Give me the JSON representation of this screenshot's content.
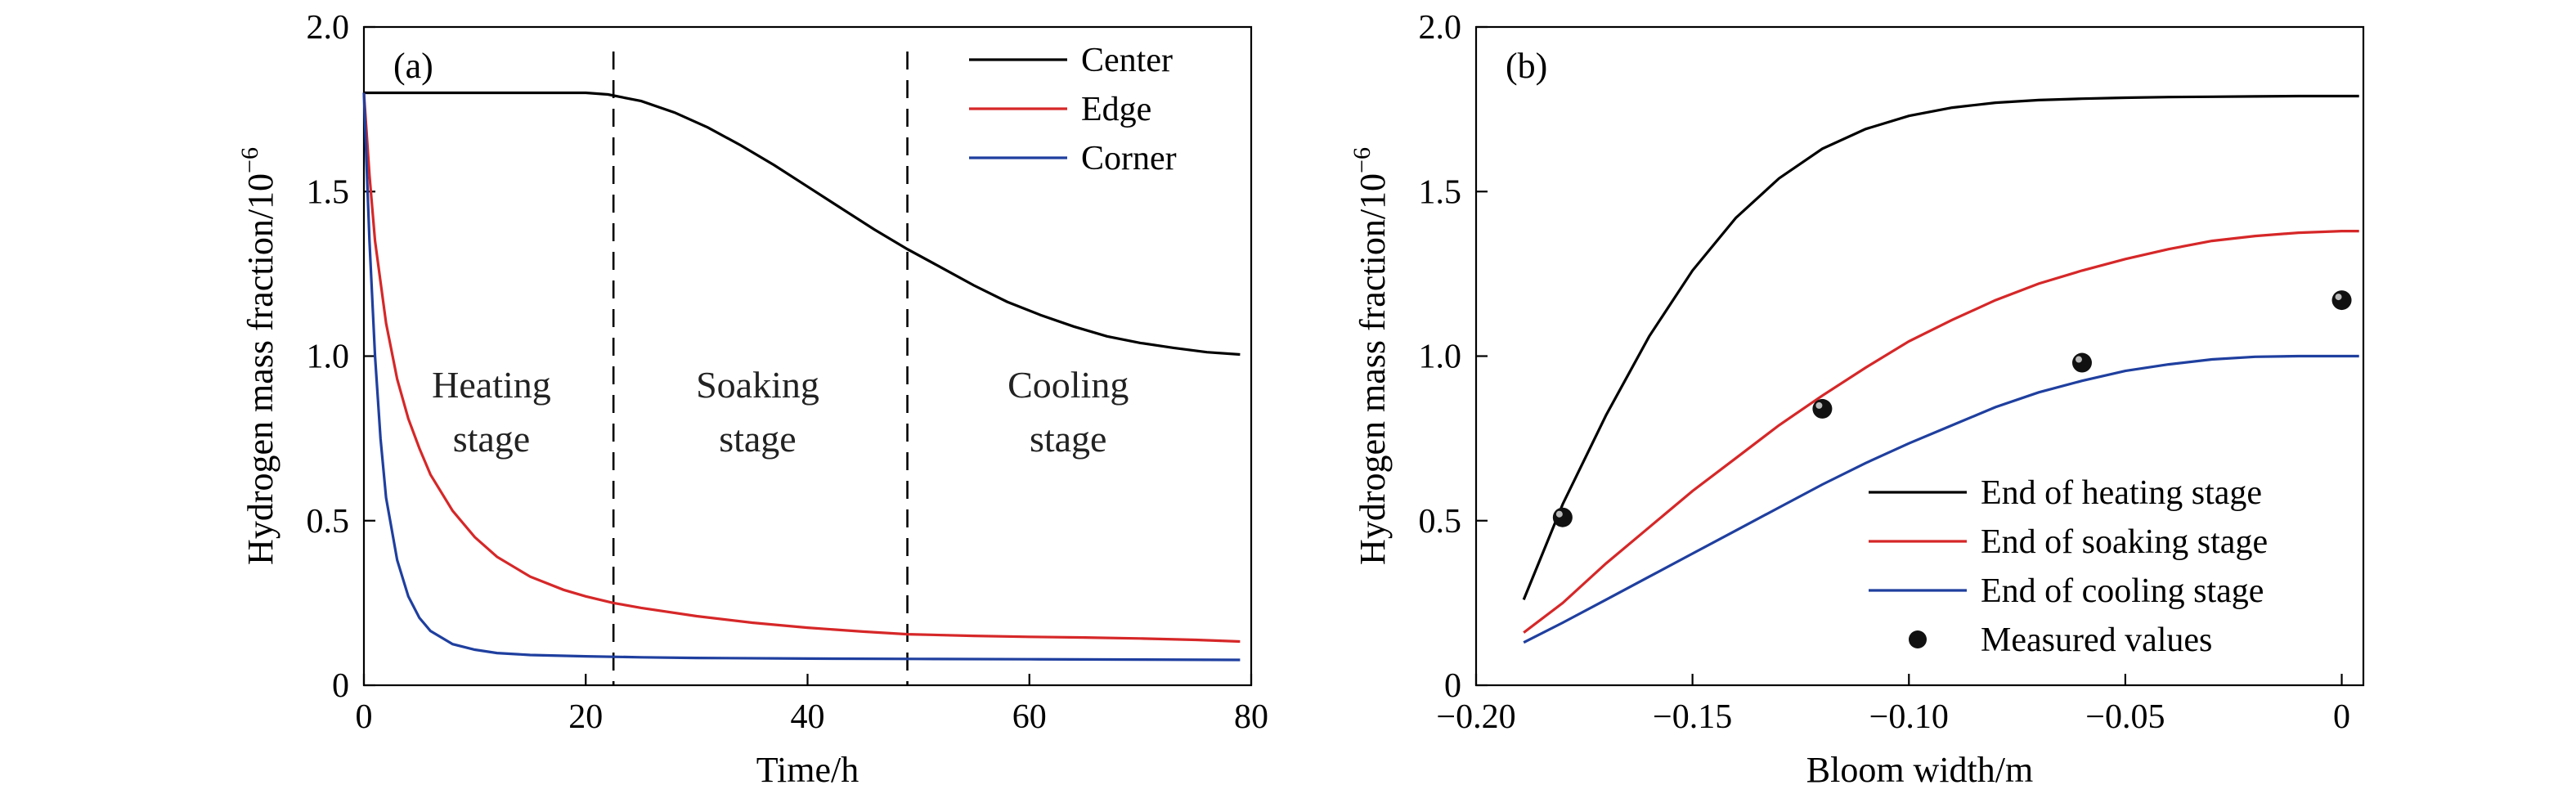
{
  "chart_data": [
    {
      "type": "line",
      "panel_label": "(a)",
      "xlabel": "Time/h",
      "ylabel": "Hydrogen mass fraction/10",
      "ylabel_exponent": "−6",
      "xlim": [
        0,
        80
      ],
      "ylim": [
        0,
        2.0
      ],
      "xticks": [
        0,
        20,
        40,
        60,
        80
      ],
      "xtick_labels": [
        "0",
        "20",
        "40",
        "60",
        "80"
      ],
      "yticks": [
        0,
        0.5,
        1.0,
        1.5,
        2.0
      ],
      "ytick_labels": [
        "0",
        "0.5",
        "1.0",
        "1.5",
        "2.0"
      ],
      "legend_position": "top-right",
      "stage_dividers_x": [
        22.5,
        49
      ],
      "stage_labels": [
        {
          "line1": "Heating",
          "line2": "stage",
          "x": 11.5,
          "y": 0.85
        },
        {
          "line1": "Soaking",
          "line2": "stage",
          "x": 35.5,
          "y": 0.85
        },
        {
          "line1": "Cooling",
          "line2": "stage",
          "x": 63.5,
          "y": 0.85
        }
      ],
      "series": [
        {
          "name": "Center",
          "color": "#000000",
          "x": [
            0,
            5,
            10,
            15,
            20,
            22,
            25,
            28,
            31,
            34,
            37,
            40,
            43,
            46,
            49,
            52,
            55,
            58,
            61,
            64,
            67,
            70,
            73,
            76,
            79
          ],
          "y": [
            1.8,
            1.8,
            1.8,
            1.8,
            1.8,
            1.795,
            1.775,
            1.74,
            1.695,
            1.64,
            1.58,
            1.515,
            1.45,
            1.385,
            1.325,
            1.27,
            1.215,
            1.165,
            1.125,
            1.09,
            1.06,
            1.04,
            1.025,
            1.012,
            1.005
          ]
        },
        {
          "name": "Edge",
          "color": "#d62728",
          "x": [
            0,
            0.5,
            1,
            2,
            3,
            4,
            5,
            6,
            8,
            10,
            12,
            15,
            18,
            20,
            22.5,
            25,
            30,
            35,
            40,
            45,
            49,
            55,
            60,
            65,
            70,
            75,
            79
          ],
          "y": [
            1.8,
            1.55,
            1.35,
            1.1,
            0.93,
            0.81,
            0.72,
            0.64,
            0.53,
            0.45,
            0.39,
            0.33,
            0.29,
            0.27,
            0.25,
            0.235,
            0.21,
            0.19,
            0.175,
            0.163,
            0.155,
            0.15,
            0.147,
            0.145,
            0.142,
            0.138,
            0.133
          ]
        },
        {
          "name": "Corner",
          "color": "#1f3f9f",
          "x": [
            0,
            0.5,
            1,
            1.5,
            2,
            3,
            4,
            5,
            6,
            8,
            10,
            12,
            15,
            20,
            25,
            30,
            40,
            50,
            60,
            70,
            79
          ],
          "y": [
            1.8,
            1.35,
            1.0,
            0.75,
            0.57,
            0.38,
            0.27,
            0.205,
            0.165,
            0.125,
            0.108,
            0.098,
            0.092,
            0.088,
            0.085,
            0.083,
            0.081,
            0.08,
            0.079,
            0.078,
            0.077
          ]
        }
      ]
    },
    {
      "type": "line",
      "panel_label": "(b)",
      "xlabel": "Bloom width/m",
      "ylabel": "Hydrogen mass fraction/10",
      "ylabel_exponent": "−6",
      "xlim": [
        -0.2,
        0.005
      ],
      "ylim": [
        0,
        2.0
      ],
      "xticks": [
        -0.2,
        -0.15,
        -0.1,
        -0.05,
        0
      ],
      "xtick_labels": [
        "−0.20",
        "−0.15",
        "−0.10",
        "−0.05",
        "0"
      ],
      "yticks": [
        0,
        0.5,
        1.0,
        1.5,
        2.0
      ],
      "ytick_labels": [
        "0",
        "0.5",
        "1.0",
        "1.5",
        "2.0"
      ],
      "legend_position": "bottom-right",
      "series": [
        {
          "name": "End of heating stage",
          "color": "#000000",
          "x": [
            -0.189,
            -0.18,
            -0.17,
            -0.16,
            -0.15,
            -0.14,
            -0.13,
            -0.12,
            -0.11,
            -0.1,
            -0.09,
            -0.08,
            -0.07,
            -0.06,
            -0.05,
            -0.04,
            -0.03,
            -0.02,
            -0.01,
            0.0,
            0.004
          ],
          "y": [
            0.26,
            0.55,
            0.82,
            1.06,
            1.26,
            1.42,
            1.54,
            1.63,
            1.69,
            1.73,
            1.755,
            1.77,
            1.778,
            1.782,
            1.785,
            1.787,
            1.788,
            1.789,
            1.79,
            1.79,
            1.79
          ]
        },
        {
          "name": "End of soaking stage",
          "color": "#d62728",
          "x": [
            -0.189,
            -0.18,
            -0.17,
            -0.16,
            -0.15,
            -0.14,
            -0.13,
            -0.12,
            -0.11,
            -0.1,
            -0.09,
            -0.08,
            -0.07,
            -0.06,
            -0.05,
            -0.04,
            -0.03,
            -0.02,
            -0.01,
            0.0,
            0.004
          ],
          "y": [
            0.16,
            0.25,
            0.37,
            0.48,
            0.59,
            0.69,
            0.79,
            0.88,
            0.965,
            1.045,
            1.11,
            1.17,
            1.22,
            1.26,
            1.295,
            1.325,
            1.35,
            1.365,
            1.375,
            1.38,
            1.38
          ]
        },
        {
          "name": "End of cooling stage",
          "color": "#1f3f9f",
          "x": [
            -0.189,
            -0.18,
            -0.17,
            -0.16,
            -0.15,
            -0.14,
            -0.13,
            -0.12,
            -0.11,
            -0.1,
            -0.09,
            -0.08,
            -0.07,
            -0.06,
            -0.05,
            -0.04,
            -0.03,
            -0.02,
            -0.01,
            0.0,
            0.004
          ],
          "y": [
            0.13,
            0.19,
            0.26,
            0.33,
            0.4,
            0.47,
            0.54,
            0.61,
            0.675,
            0.735,
            0.79,
            0.845,
            0.89,
            0.925,
            0.955,
            0.975,
            0.99,
            0.998,
            1.0,
            1.0,
            1.0
          ]
        },
        {
          "name": "Measured values",
          "kind": "scatter",
          "color": "#000000",
          "x": [
            -0.18,
            -0.12,
            -0.06,
            0.0
          ],
          "y": [
            0.51,
            0.84,
            0.98,
            1.17
          ]
        }
      ]
    }
  ]
}
